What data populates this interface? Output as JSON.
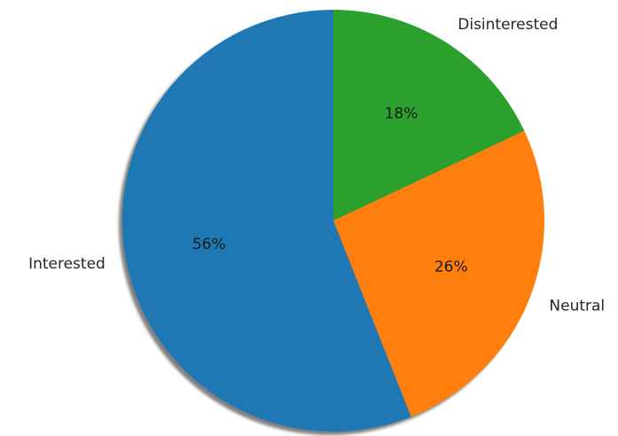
{
  "chart_data": {
    "type": "pie",
    "title": "",
    "shadow": true,
    "start_angle_deg": 90,
    "direction": "clockwise",
    "slices": [
      {
        "label": "Disinterested",
        "value": 18,
        "pct_label": "18%",
        "color": "#2ca02c"
      },
      {
        "label": "Neutral",
        "value": 26,
        "pct_label": "26%",
        "color": "#ff7f0e"
      },
      {
        "label": "Interested",
        "value": 56,
        "pct_label": "56%",
        "color": "#1f77b4"
      }
    ]
  }
}
